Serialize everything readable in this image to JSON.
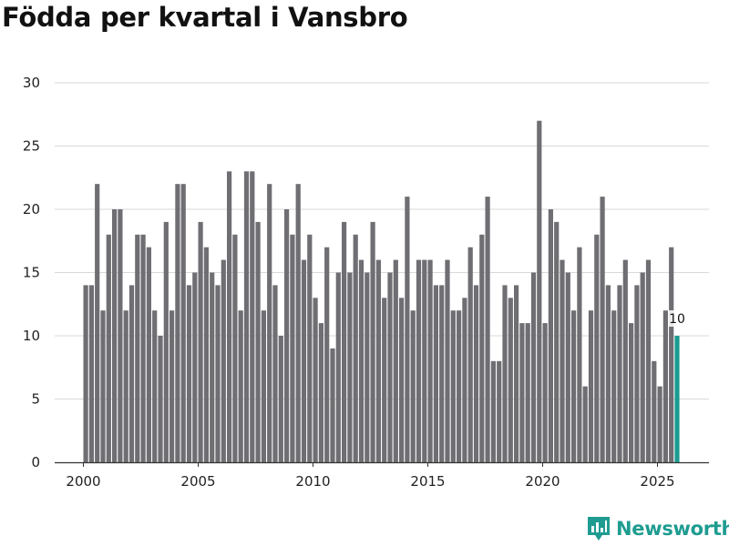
{
  "title": "Födda per kvartal i Vansbro",
  "brand": "Newsworthy",
  "colors": {
    "bar": "#6e6e73",
    "highlight": "#1a9c8f",
    "grid": "#d9d9d9",
    "brand": "#1f9c91"
  },
  "chart_data": {
    "type": "bar",
    "title": "Födda per kvartal i Vansbro",
    "x_start_year": 2000,
    "x_start_quarter": 1,
    "xticks": [
      2000,
      2005,
      2010,
      2015,
      2020,
      2025
    ],
    "yticks": [
      0,
      5,
      10,
      15,
      20,
      25,
      30
    ],
    "ylim": [
      0,
      30
    ],
    "grid": true,
    "highlight_last": true,
    "last_label": "10",
    "values": [
      14,
      14,
      22,
      12,
      18,
      20,
      20,
      12,
      14,
      18,
      18,
      17,
      12,
      10,
      19,
      12,
      22,
      22,
      14,
      15,
      19,
      17,
      15,
      14,
      16,
      23,
      18,
      12,
      23,
      23,
      19,
      12,
      22,
      14,
      10,
      20,
      18,
      22,
      16,
      18,
      13,
      11,
      17,
      9,
      15,
      19,
      15,
      18,
      16,
      15,
      19,
      16,
      13,
      15,
      16,
      13,
      21,
      12,
      16,
      16,
      16,
      14,
      14,
      16,
      12,
      12,
      13,
      17,
      14,
      18,
      21,
      8,
      8,
      14,
      13,
      14,
      11,
      11,
      15,
      27,
      11,
      20,
      19,
      16,
      15,
      12,
      17,
      6,
      12,
      18,
      21,
      14,
      12,
      14,
      16,
      11,
      14,
      15,
      16,
      8,
      6,
      12,
      17,
      10
    ]
  }
}
